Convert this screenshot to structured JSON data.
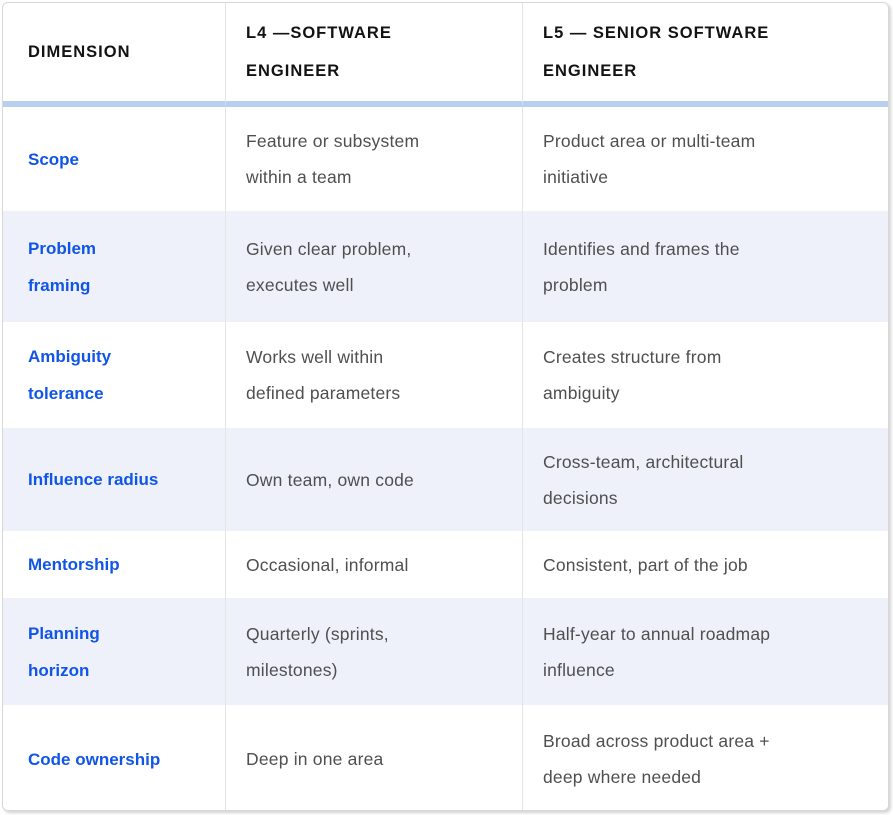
{
  "table": {
    "columns": [
      {
        "label": "DIMENSION"
      },
      {
        "label": "L4 —SOFTWARE ENGINEER"
      },
      {
        "label": "L5 — SENIOR SOFTWARE ENGINEER"
      }
    ],
    "rows": [
      {
        "dimension": "Scope",
        "l4": "Feature or subsystem within a team",
        "l5": "Product area or multi-team initiative"
      },
      {
        "dimension": "Problem framing",
        "l4": "Given clear problem, executes well",
        "l5": "Identifies and frames the problem"
      },
      {
        "dimension": "Ambiguity tolerance",
        "l4": "Works well within defined parameters",
        "l5": "Creates structure from ambiguity"
      },
      {
        "dimension": "Influence radius",
        "l4": "Own team, own code",
        "l5": "Cross-team, architectural decisions"
      },
      {
        "dimension": "Mentorship",
        "l4": "Occasional, informal",
        "l5": "Consistent, part of the job"
      },
      {
        "dimension": "Planning horizon",
        "l4": "Quarterly (sprints, milestones)",
        "l5": "Half-year to annual roadmap influence"
      },
      {
        "dimension": "Code ownership",
        "l4": "Deep in one area",
        "l5": "Broad across product area + deep where needed"
      }
    ]
  },
  "colors": {
    "accent_blue": "#1155e8",
    "row_alt_bg": "#eef1fa",
    "header_divider": "#b8cff0",
    "column_divider": "#e4e4e4",
    "outer_border": "#d8d8d8",
    "header_text": "#121212",
    "body_text": "#4f4f4f"
  }
}
